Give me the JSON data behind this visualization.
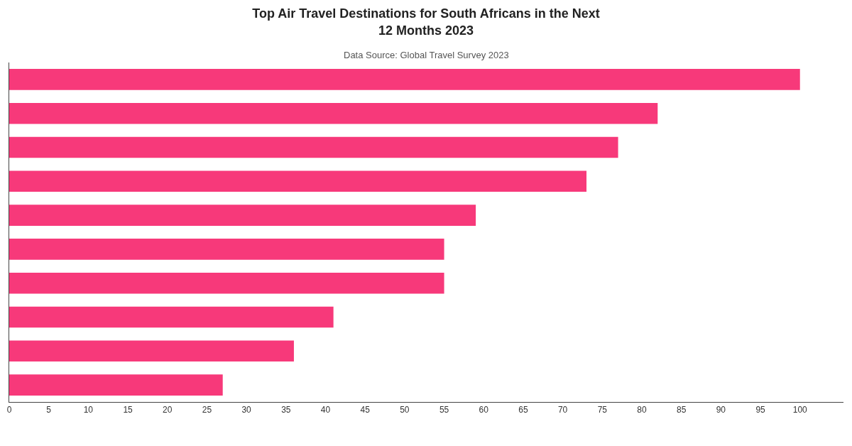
{
  "chart_data": {
    "type": "bar",
    "orientation": "horizontal",
    "title": "Top Air Travel Destinations for South Africans in the Next\n12 Months 2023",
    "subtitle": "Data Source: Global Travel Survey 2023",
    "categories": [
      null,
      null,
      null,
      null,
      null,
      null,
      null,
      null,
      null,
      null
    ],
    "values": [
      100,
      82,
      77,
      73,
      59,
      55,
      55,
      41,
      36,
      27
    ],
    "color": "#f7397a",
    "xlim": [
      0,
      105.5
    ],
    "xticks": [
      0,
      5,
      10,
      15,
      20,
      25,
      30,
      35,
      40,
      45,
      50,
      55,
      60,
      65,
      70,
      75,
      80,
      85,
      90,
      95,
      100
    ],
    "legend": false
  }
}
